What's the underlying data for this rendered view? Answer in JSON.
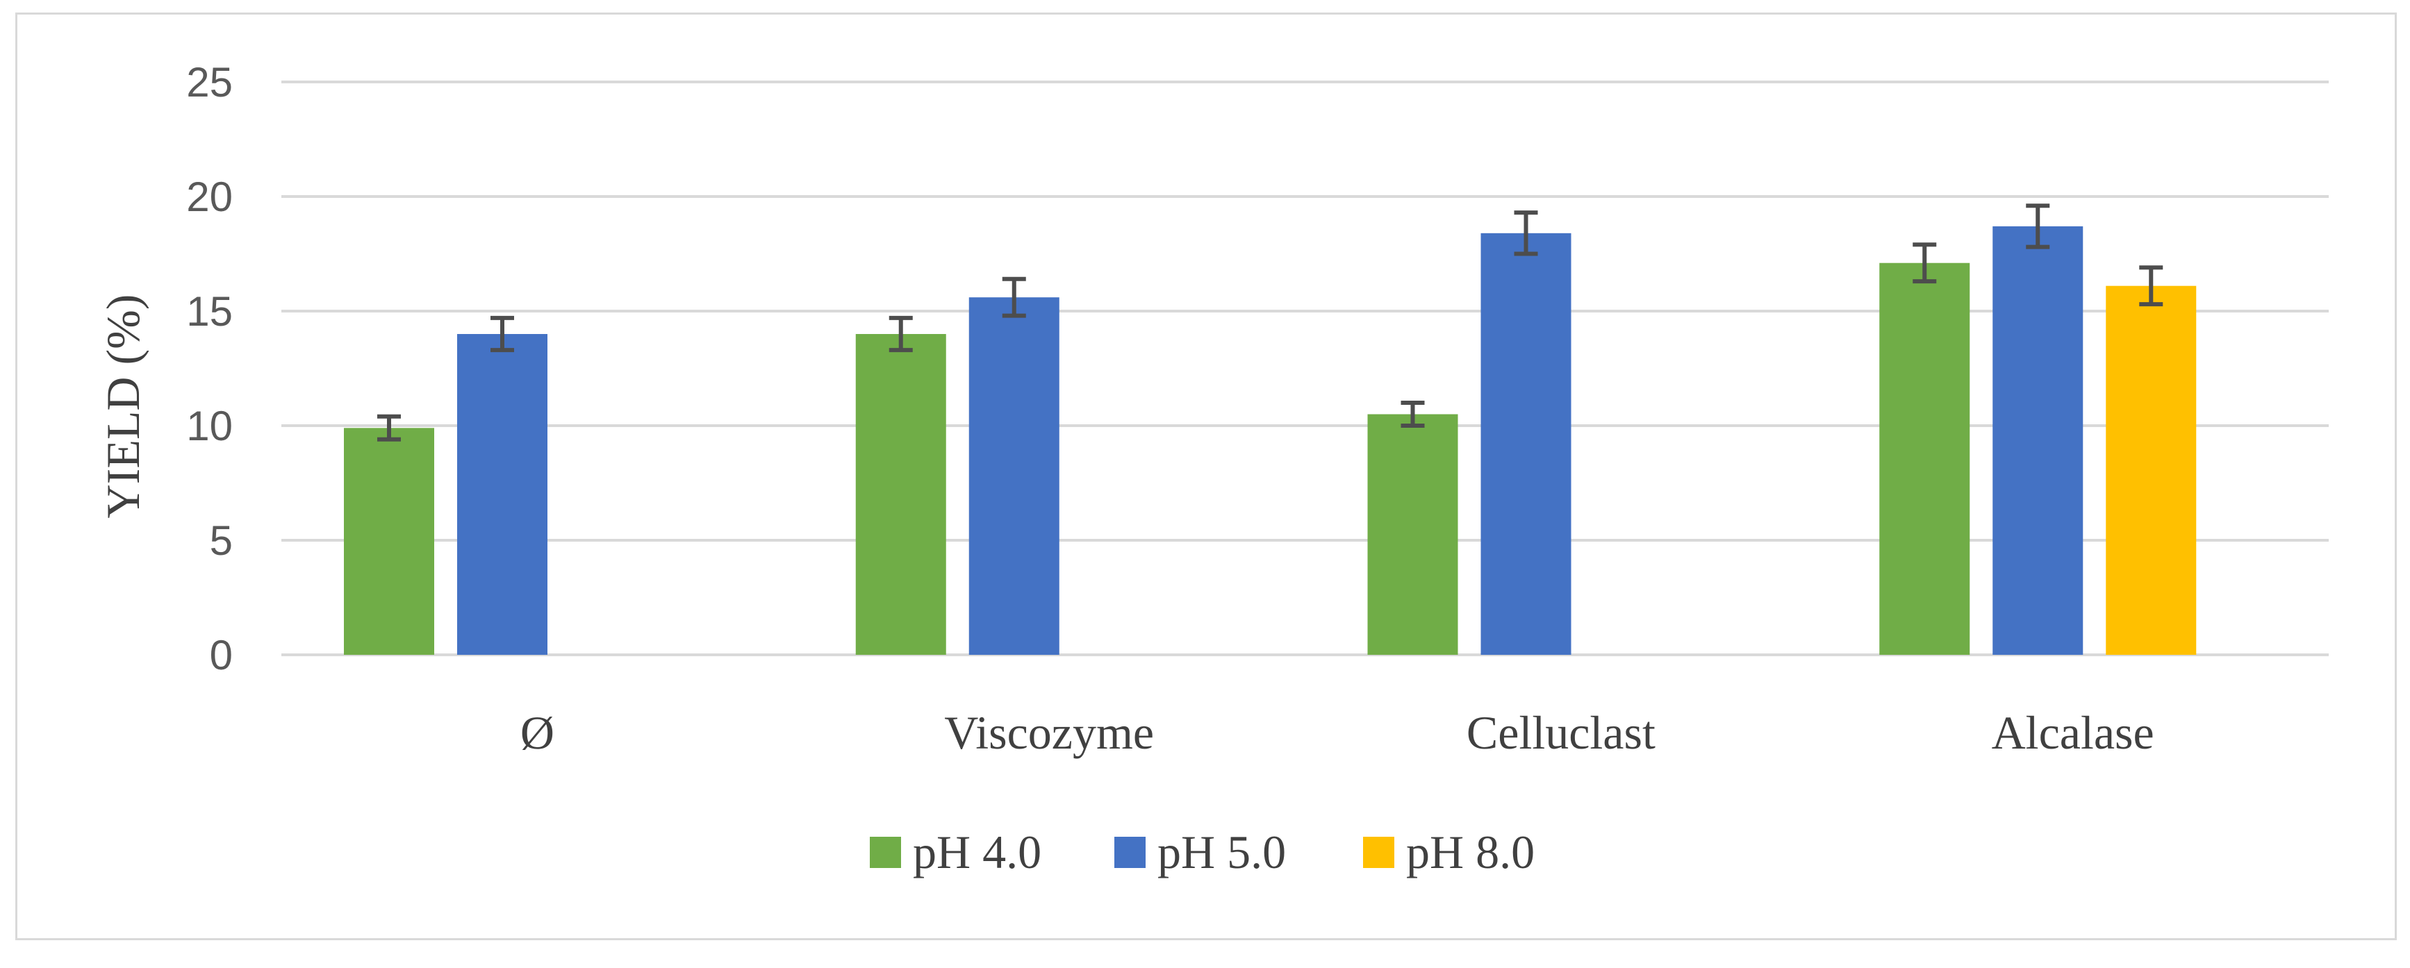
{
  "chart_data": {
    "type": "bar",
    "title": "",
    "xlabel": "",
    "ylabel": "YIELD (%)",
    "ylim": [
      0,
      25
    ],
    "yticks": [
      0,
      5,
      10,
      15,
      20,
      25
    ],
    "grid": true,
    "legend_position": "bottom",
    "categories": [
      "Ø",
      "Viscozyme",
      "Celluclast",
      "Alcalase"
    ],
    "series": [
      {
        "name": "pH 4.0",
        "color": "#70ad47",
        "values": [
          9.9,
          14.0,
          10.5,
          17.1
        ],
        "errors": [
          0.5,
          0.7,
          0.5,
          0.8
        ]
      },
      {
        "name": "pH 5.0",
        "color": "#4472c4",
        "values": [
          14.0,
          15.6,
          18.4,
          18.7
        ],
        "errors": [
          0.7,
          0.8,
          0.9,
          0.9
        ]
      },
      {
        "name": "pH 8.0",
        "color": "#ffc000",
        "values": [
          null,
          null,
          null,
          16.1
        ],
        "errors": [
          null,
          null,
          null,
          0.8
        ]
      }
    ]
  }
}
